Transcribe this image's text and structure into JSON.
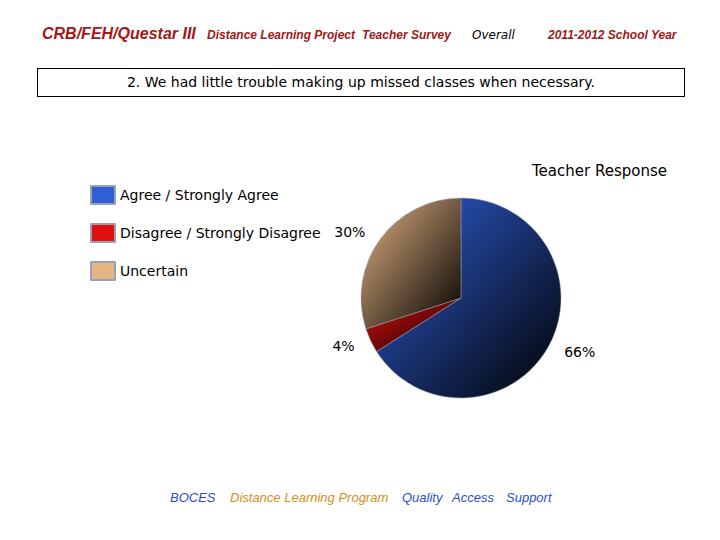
{
  "header": {
    "title": "CRB/FEH/Questar III",
    "subtitle": [
      "Distance Learning Project",
      "Teacher Survey"
    ],
    "scope": "Overall",
    "year": "2011-2012 School Year"
  },
  "chart_data": {
    "type": "pie",
    "title": "2. We had little trouble making up missed classes when necessary.",
    "subtitle": "Teacher Response",
    "categories": [
      "Agree / Strongly Agree",
      "Disagree / Strongly Disagree",
      "Uncertain"
    ],
    "values": [
      66,
      4,
      30
    ],
    "value_labels": [
      "66%",
      "4%",
      "30%"
    ],
    "colors": [
      "#2f5fd6",
      "#e01010",
      "#e6b585"
    ],
    "data_labels": true,
    "legend": "top-left"
  },
  "footer": [
    "BOCES",
    "Distance Learning Program",
    "Quality",
    "Access",
    "Support"
  ]
}
